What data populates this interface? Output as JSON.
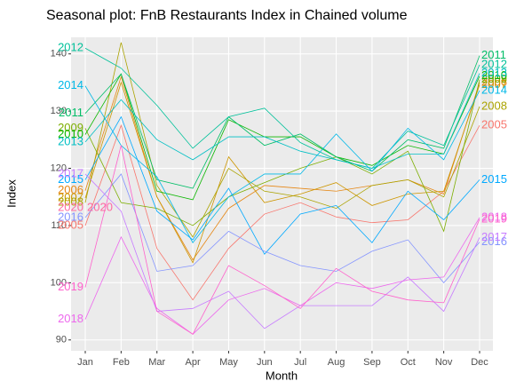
{
  "chart_data": {
    "type": "line",
    "title": "Seasonal plot: FnB Restaurants Index in Chained volume",
    "xlabel": "Month",
    "ylabel": "Index",
    "categories": [
      "Jan",
      "Feb",
      "Mar",
      "Apr",
      "May",
      "Jun",
      "Jul",
      "Aug",
      "Sep",
      "Oct",
      "Nov",
      "Dec"
    ],
    "ylim": [
      88.1,
      142.9
    ],
    "yticks": [
      90,
      100,
      110,
      120,
      130,
      140
    ],
    "grid": true,
    "series": [
      {
        "name": "2005",
        "color": "#F8766D",
        "values": [
          110,
          127.5,
          106,
          97,
          106,
          112,
          114,
          111.5,
          110.5,
          111,
          116,
          127.5
        ]
      },
      {
        "name": "2006",
        "color": "#E68613",
        "values": [
          116.1,
          136,
          115,
          104,
          113,
          117,
          116.5,
          116,
          117,
          118,
          115.5,
          135
        ]
      },
      {
        "name": "2007",
        "color": "#CD9600",
        "values": [
          114.8,
          135,
          115,
          103.5,
          122,
          114,
          115.5,
          117.5,
          113.5,
          115.5,
          116,
          134.6
        ]
      },
      {
        "name": "2008",
        "color": "#ABA300",
        "values": [
          114,
          142,
          117,
          108,
          120,
          116,
          115,
          113,
          117,
          118,
          115,
          130.8
        ]
      },
      {
        "name": "2009",
        "color": "#7CAE00",
        "values": [
          127,
          114,
          113,
          110,
          115,
          117.5,
          120,
          122,
          119,
          123,
          109,
          135.5
        ]
      },
      {
        "name": "2010",
        "color": "#0CB702",
        "values": [
          125.9,
          136.5,
          116,
          114.5,
          128.5,
          125.5,
          125.5,
          122,
          120.5,
          124,
          122.5,
          136.1
        ]
      },
      {
        "name": "2011",
        "color": "#00BE67",
        "values": [
          129.6,
          136.5,
          118,
          116.5,
          129,
          124,
          126,
          122,
          119.5,
          125,
          123.5,
          139.7
        ]
      },
      {
        "name": "2012",
        "color": "#00C19A",
        "values": [
          141,
          137.5,
          131,
          123.5,
          129,
          130.5,
          124.5,
          121.5,
          120,
          126.5,
          124,
          138.1
        ]
      },
      {
        "name": "2013",
        "color": "#00BFC4",
        "values": [
          124.6,
          132,
          125,
          121.5,
          125.5,
          125.5,
          123,
          121.5,
          120,
          122.5,
          122.5,
          136.6
        ]
      },
      {
        "name": "2014",
        "color": "#00B8E7",
        "values": [
          134.4,
          124,
          118.5,
          107,
          115,
          119,
          119,
          126,
          119.5,
          127,
          121.5,
          133.6
        ]
      },
      {
        "name": "2015",
        "color": "#00A9FF",
        "values": [
          118,
          129,
          112.5,
          107.5,
          116.5,
          105,
          112,
          113.5,
          107,
          116,
          111,
          118
        ]
      },
      {
        "name": "2016",
        "color": "#8494FF",
        "values": [
          111.4,
          119,
          102,
          103,
          109,
          105.5,
          103,
          102,
          105.5,
          107.5,
          100,
          107.1
        ]
      },
      {
        "name": "2017",
        "color": "#C77CFF",
        "values": [
          119,
          112.5,
          95,
          95.5,
          98.5,
          92,
          96,
          96,
          96,
          101,
          95,
          107.9
        ]
      },
      {
        "name": "2018",
        "color": "#ED68ED",
        "values": [
          93.6,
          108,
          95.5,
          91,
          97,
          99,
          96,
          100,
          99,
          100.5,
          101,
          111.4
        ]
      },
      {
        "name": "2019",
        "color": "#FF61CC",
        "values": [
          99.2,
          124,
          95,
          91,
          103,
          99.5,
          95.5,
          102.5,
          98.5,
          97,
          96.5,
          111.1
        ]
      },
      {
        "name": "2020",
        "color": "#FF68A1",
        "values": [
          113.1,
          null,
          null,
          null,
          null,
          null,
          null,
          null,
          null,
          null,
          null,
          null
        ]
      }
    ]
  }
}
